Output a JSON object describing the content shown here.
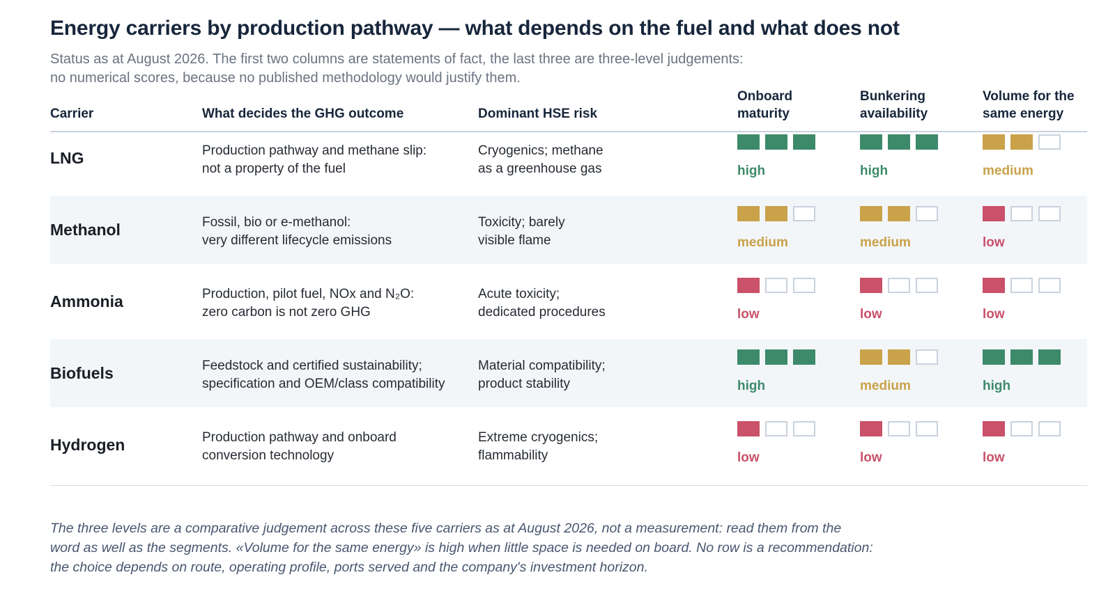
{
  "header": {
    "title": "Energy carriers by production pathway — what depends on the fuel and what does not",
    "subtitle_lines": [
      "Status as at August 2026. The first two columns are statements of fact, the last three are three-level judgements:",
      "no numerical scores, because no published methodology would justify them."
    ]
  },
  "chart_data": {
    "type": "table",
    "columns": [
      {
        "key": "carrier",
        "lines": [
          "Carrier"
        ]
      },
      {
        "key": "ghg",
        "lines": [
          "What decides the GHG outcome"
        ]
      },
      {
        "key": "hse",
        "lines": [
          "Dominant HSE risk"
        ]
      },
      {
        "key": "maturity",
        "lines": [
          "Onboard",
          "maturity"
        ]
      },
      {
        "key": "bunkering",
        "lines": [
          "Bunkering",
          "availability"
        ]
      },
      {
        "key": "volume",
        "lines": [
          "Volume for the",
          "same energy"
        ]
      }
    ],
    "levels": {
      "high": {
        "filled": 3,
        "color": "#3d8a6b"
      },
      "medium": {
        "filled": 2,
        "color": "#c9a24a"
      },
      "low": {
        "filled": 1,
        "color": "#c9516a"
      }
    },
    "rows": [
      {
        "carrier": "LNG",
        "ghg": [
          "Production pathway and methane slip:",
          "not a property of the fuel"
        ],
        "hse": [
          "Cryogenics; methane",
          "as a greenhouse gas"
        ],
        "maturity": "high",
        "bunkering": "high",
        "volume": "medium"
      },
      {
        "carrier": "Methanol",
        "ghg": [
          "Fossil, bio or e-methanol:",
          "very different lifecycle emissions"
        ],
        "hse": [
          "Toxicity; barely",
          "visible flame"
        ],
        "maturity": "medium",
        "bunkering": "medium",
        "volume": "low"
      },
      {
        "carrier": "Ammonia",
        "ghg": [
          "Production, pilot fuel, NOx and N₂O:",
          "zero carbon is not zero GHG"
        ],
        "hse": [
          "Acute toxicity;",
          "dedicated procedures"
        ],
        "maturity": "low",
        "bunkering": "low",
        "volume": "low"
      },
      {
        "carrier": "Biofuels",
        "ghg": [
          "Feedstock and certified sustainability;",
          "specification and OEM/class compatibility"
        ],
        "hse": [
          "Material compatibility;",
          "product stability"
        ],
        "maturity": "high",
        "bunkering": "medium",
        "volume": "high"
      },
      {
        "carrier": "Hydrogen",
        "ghg": [
          "Production pathway and onboard",
          "conversion technology"
        ],
        "hse": [
          "Extreme cryogenics;",
          "flammability"
        ],
        "maturity": "low",
        "bunkering": "low",
        "volume": "low"
      }
    ]
  },
  "footnote_lines": [
    "The three levels are a comparative judgement across these five carriers as at August 2026, not a measurement: read them from the",
    "word as well as the segments. «Volume for the same energy» is high when little space is needed on board. No row is a recommendation:",
    "the choice depends on route, operating profile, ports served and the company's investment horizon."
  ]
}
